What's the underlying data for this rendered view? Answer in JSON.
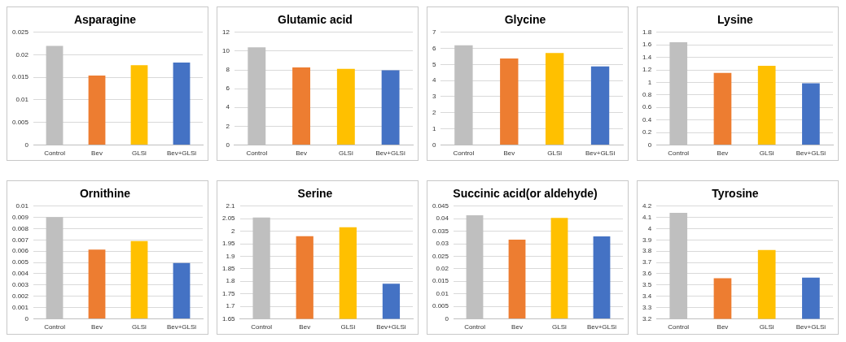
{
  "chart_data": [
    {
      "type": "bar",
      "title": "Asparagine",
      "categories": [
        "Control",
        "Bev",
        "GLSi",
        "Bev+GLSi"
      ],
      "values": [
        0.022,
        0.0154,
        0.0177,
        0.0183
      ],
      "colors": [
        "#bfbfbf",
        "#ed7d31",
        "#ffc000",
        "#4472c4"
      ],
      "ylim": [
        0,
        0.025
      ],
      "yticks": [
        0,
        0.005,
        0.01,
        0.015,
        0.02,
        0.025
      ],
      "grid": "y",
      "legend": false
    },
    {
      "type": "bar",
      "title": "Glutamic acid",
      "categories": [
        "Control",
        "Bev",
        "GLSi",
        "Bev+GLSi"
      ],
      "values": [
        10.4,
        8.25,
        8.1,
        7.95
      ],
      "colors": [
        "#bfbfbf",
        "#ed7d31",
        "#ffc000",
        "#4472c4"
      ],
      "ylim": [
        0,
        12
      ],
      "yticks": [
        0,
        2,
        4,
        6,
        8,
        10,
        12
      ],
      "grid": "y",
      "legend": false
    },
    {
      "type": "bar",
      "title": "Glycine",
      "categories": [
        "Control",
        "Bev",
        "GLSi",
        "Bev+GLSi"
      ],
      "values": [
        6.2,
        5.37,
        5.72,
        4.88
      ],
      "colors": [
        "#bfbfbf",
        "#ed7d31",
        "#ffc000",
        "#4472c4"
      ],
      "ylim": [
        0,
        7
      ],
      "yticks": [
        0,
        1,
        2,
        3,
        4,
        5,
        6,
        7
      ],
      "grid": "y",
      "legend": false
    },
    {
      "type": "bar",
      "title": "Lysine",
      "categories": [
        "Control",
        "Bev",
        "GLSi",
        "Bev+GLSi"
      ],
      "values": [
        1.64,
        1.15,
        1.265,
        0.985
      ],
      "colors": [
        "#bfbfbf",
        "#ed7d31",
        "#ffc000",
        "#4472c4"
      ],
      "ylim": [
        0,
        1.8
      ],
      "yticks": [
        0,
        0.2,
        0.4,
        0.6,
        0.8,
        1,
        1.2,
        1.4,
        1.6,
        1.8
      ],
      "grid": "y",
      "legend": false
    },
    {
      "type": "bar",
      "title": "Ornithine",
      "categories": [
        "Control",
        "Bev",
        "GLSi",
        "Bev+GLSi"
      ],
      "values": [
        0.00903,
        0.00615,
        0.0069,
        0.00495
      ],
      "colors": [
        "#bfbfbf",
        "#ed7d31",
        "#ffc000",
        "#4472c4"
      ],
      "ylim": [
        0,
        0.01
      ],
      "yticks": [
        0,
        0.001,
        0.002,
        0.003,
        0.004,
        0.005,
        0.006,
        0.007,
        0.008,
        0.009,
        0.01
      ],
      "grid": "y",
      "legend": false
    },
    {
      "type": "bar",
      "title": "Serine",
      "categories": [
        "Control",
        "Bev",
        "GLSi",
        "Bev+GLSi"
      ],
      "values": [
        2.055,
        1.98,
        2.016,
        1.79
      ],
      "colors": [
        "#bfbfbf",
        "#ed7d31",
        "#ffc000",
        "#4472c4"
      ],
      "ylim": [
        1.65,
        2.1
      ],
      "yticks": [
        1.65,
        1.7,
        1.75,
        1.8,
        1.85,
        1.9,
        1.95,
        2,
        2.05,
        2.1
      ],
      "grid": "y",
      "legend": false
    },
    {
      "type": "bar",
      "title": "Succinic acid(or aldehyde)",
      "categories": [
        "Control",
        "Bev",
        "GLSi",
        "Bev+GLSi"
      ],
      "values": [
        0.0414,
        0.0316,
        0.0403,
        0.0329
      ],
      "colors": [
        "#bfbfbf",
        "#ed7d31",
        "#ffc000",
        "#4472c4"
      ],
      "ylim": [
        0,
        0.045
      ],
      "yticks": [
        0,
        0.005,
        0.01,
        0.015,
        0.02,
        0.025,
        0.03,
        0.035,
        0.04,
        0.045
      ],
      "grid": "y",
      "legend": false
    },
    {
      "type": "bar",
      "title": "Tyrosine",
      "categories": [
        "Control",
        "Bev",
        "GLSi",
        "Bev+GLSi"
      ],
      "values": [
        4.14,
        3.56,
        3.81,
        3.565
      ],
      "colors": [
        "#bfbfbf",
        "#ed7d31",
        "#ffc000",
        "#4472c4"
      ],
      "ylim": [
        3.2,
        4.2
      ],
      "yticks": [
        3.2,
        3.3,
        3.4,
        3.5,
        3.6,
        3.7,
        3.8,
        3.9,
        4,
        4.1,
        4.2
      ],
      "grid": "y",
      "legend": false
    }
  ]
}
